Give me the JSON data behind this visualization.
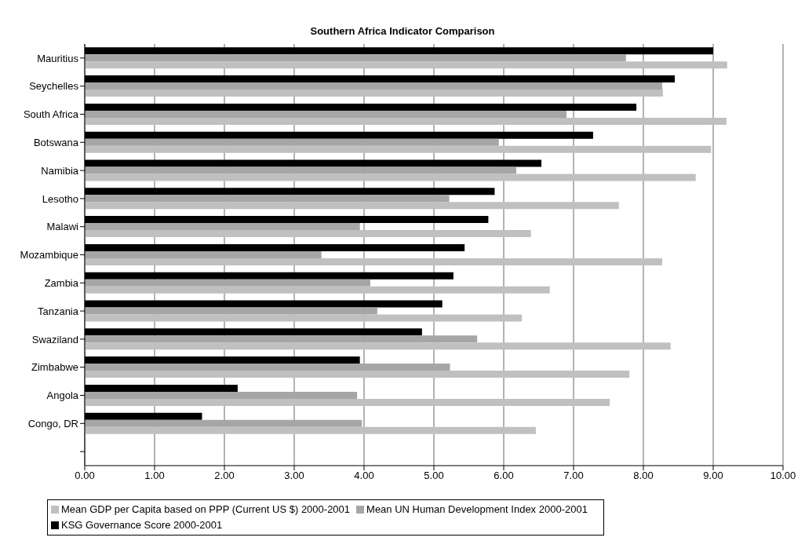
{
  "chart_data": {
    "type": "bar",
    "orientation": "horizontal",
    "title": "Southern Africa Indicator Comparison",
    "categories": [
      "Mauritius",
      "Seychelles",
      "South Africa",
      "Botswana",
      "Namibia",
      "Lesotho",
      "Malawi",
      "Mozambique",
      "Zambia",
      "Tanzania",
      "Swaziland",
      "Zimbabwe",
      "Angola",
      "Congo, DR",
      null
    ],
    "series": [
      {
        "name": "Mean GDP per Capita based on PPP (Current US $) 2000-2001",
        "color": "#c0c0c0",
        "values": [
          9.2,
          8.28,
          9.19,
          8.97,
          8.75,
          7.65,
          6.39,
          8.27,
          6.66,
          6.26,
          8.39,
          7.8,
          7.52,
          6.46,
          null
        ]
      },
      {
        "name": "Mean UN Human Development Index 2000-2001",
        "color": "#a6a6a6",
        "values": [
          7.75,
          8.27,
          6.9,
          5.93,
          6.18,
          5.22,
          3.94,
          3.39,
          4.09,
          4.19,
          5.62,
          5.23,
          3.9,
          3.97,
          null
        ]
      },
      {
        "name": "KSG Governance Score 2000-2001",
        "color": "#000000",
        "values": [
          9.0,
          8.45,
          7.9,
          7.28,
          6.54,
          5.87,
          5.78,
          5.44,
          5.28,
          5.12,
          4.83,
          3.94,
          2.19,
          1.68,
          null
        ]
      }
    ],
    "xlim": [
      0,
      10
    ],
    "xticks": [
      {
        "value": 0,
        "label": "0.00"
      },
      {
        "value": 1,
        "label": "1.00"
      },
      {
        "value": 2,
        "label": "2.00"
      },
      {
        "value": 3,
        "label": "3.00"
      },
      {
        "value": 4,
        "label": "4.00"
      },
      {
        "value": 5,
        "label": "5.00"
      },
      {
        "value": 6,
        "label": "6.00"
      },
      {
        "value": 7,
        "label": "7.00"
      },
      {
        "value": 8,
        "label": "8.00"
      },
      {
        "value": 9,
        "label": "9.00"
      },
      {
        "value": 10,
        "label": "10.00"
      }
    ],
    "grid": "x",
    "legend": "bottom"
  }
}
